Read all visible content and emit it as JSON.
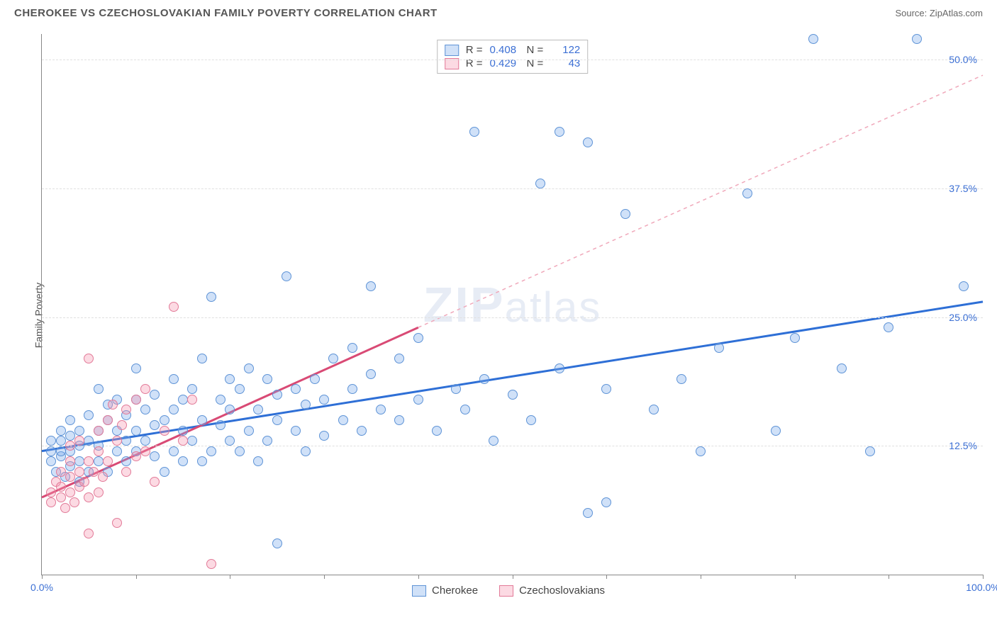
{
  "title": "CHEROKEE VS CZECHOSLOVAKIAN FAMILY POVERTY CORRELATION CHART",
  "source_prefix": "Source: ",
  "source_name": "ZipAtlas.com",
  "watermark_a": "ZIP",
  "watermark_b": "atlas",
  "chart": {
    "type": "scatter",
    "ylabel": "Family Poverty",
    "xlim": [
      0,
      100
    ],
    "ylim": [
      0,
      52.5
    ],
    "yticks": [
      12.5,
      25.0,
      37.5,
      50.0
    ],
    "ytick_labels": [
      "12.5%",
      "25.0%",
      "37.5%",
      "50.0%"
    ],
    "xticks": [
      0,
      10,
      20,
      30,
      40,
      50,
      60,
      70,
      80,
      90,
      100
    ],
    "xtick_labels": {
      "0": "0.0%",
      "100": "100.0%"
    },
    "grid_color": "#e0e0e0",
    "axis_color": "#888888",
    "background_color": "#ffffff",
    "point_radius": 7,
    "point_stroke_width": 1,
    "series": [
      {
        "name": "Cherokee",
        "fill": "rgba(120,170,235,0.35)",
        "stroke": "#5e93d6",
        "R": "0.408",
        "N": "122",
        "trend": {
          "x1": 0,
          "y1": 12.0,
          "x2": 100,
          "y2": 26.5,
          "color": "#2e6fd6",
          "width": 3,
          "dash": ""
        },
        "points": [
          [
            1,
            11
          ],
          [
            1,
            12
          ],
          [
            1,
            13
          ],
          [
            1.5,
            10
          ],
          [
            2,
            11.5
          ],
          [
            2,
            13
          ],
          [
            2,
            14
          ],
          [
            2,
            12
          ],
          [
            2.5,
            9.5
          ],
          [
            3,
            10.5
          ],
          [
            3,
            12
          ],
          [
            3,
            13.5
          ],
          [
            3,
            15
          ],
          [
            4,
            11
          ],
          [
            4,
            12.5
          ],
          [
            4,
            14
          ],
          [
            4,
            9
          ],
          [
            5,
            10
          ],
          [
            5,
            13
          ],
          [
            5,
            15.5
          ],
          [
            6,
            11
          ],
          [
            6,
            12.5
          ],
          [
            6,
            14
          ],
          [
            6,
            18
          ],
          [
            7,
            10
          ],
          [
            7,
            15
          ],
          [
            7,
            16.5
          ],
          [
            8,
            12
          ],
          [
            8,
            14
          ],
          [
            8,
            17
          ],
          [
            9,
            11
          ],
          [
            9,
            13
          ],
          [
            9,
            15.5
          ],
          [
            10,
            12
          ],
          [
            10,
            14
          ],
          [
            10,
            17
          ],
          [
            10,
            20
          ],
          [
            11,
            13
          ],
          [
            11,
            16
          ],
          [
            12,
            11.5
          ],
          [
            12,
            14.5
          ],
          [
            12,
            17.5
          ],
          [
            13,
            10
          ],
          [
            13,
            15
          ],
          [
            14,
            12
          ],
          [
            14,
            16
          ],
          [
            14,
            19
          ],
          [
            15,
            11
          ],
          [
            15,
            14
          ],
          [
            15,
            17
          ],
          [
            16,
            13
          ],
          [
            16,
            18
          ],
          [
            17,
            11
          ],
          [
            17,
            15
          ],
          [
            17,
            21
          ],
          [
            18,
            27
          ],
          [
            18,
            12
          ],
          [
            19,
            14.5
          ],
          [
            19,
            17
          ],
          [
            20,
            13
          ],
          [
            20,
            16
          ],
          [
            20,
            19
          ],
          [
            21,
            12
          ],
          [
            21,
            18
          ],
          [
            22,
            14
          ],
          [
            22,
            20
          ],
          [
            23,
            11
          ],
          [
            23,
            16
          ],
          [
            24,
            13
          ],
          [
            24,
            19
          ],
          [
            25,
            15
          ],
          [
            25,
            17.5
          ],
          [
            25,
            3
          ],
          [
            26,
            29
          ],
          [
            27,
            14
          ],
          [
            27,
            18
          ],
          [
            28,
            12
          ],
          [
            28,
            16.5
          ],
          [
            29,
            19
          ],
          [
            30,
            13.5
          ],
          [
            30,
            17
          ],
          [
            31,
            21
          ],
          [
            32,
            15
          ],
          [
            33,
            18
          ],
          [
            33,
            22
          ],
          [
            34,
            14
          ],
          [
            35,
            19.5
          ],
          [
            35,
            28
          ],
          [
            36,
            16
          ],
          [
            38,
            15
          ],
          [
            38,
            21
          ],
          [
            40,
            17
          ],
          [
            40,
            23
          ],
          [
            42,
            14
          ],
          [
            44,
            18
          ],
          [
            45,
            16
          ],
          [
            46,
            43
          ],
          [
            47,
            19
          ],
          [
            48,
            13
          ],
          [
            50,
            17.5
          ],
          [
            52,
            15
          ],
          [
            53,
            38
          ],
          [
            55,
            20
          ],
          [
            55,
            43
          ],
          [
            58,
            42
          ],
          [
            58,
            6
          ],
          [
            60,
            18
          ],
          [
            60,
            7
          ],
          [
            62,
            35
          ],
          [
            65,
            16
          ],
          [
            68,
            19
          ],
          [
            70,
            12
          ],
          [
            72,
            22
          ],
          [
            75,
            37
          ],
          [
            78,
            14
          ],
          [
            80,
            23
          ],
          [
            82,
            52
          ],
          [
            85,
            20
          ],
          [
            88,
            12
          ],
          [
            90,
            24
          ],
          [
            93,
            52
          ],
          [
            98,
            28
          ]
        ]
      },
      {
        "name": "Czechoslovakians",
        "fill": "rgba(245,150,175,0.35)",
        "stroke": "#e27a98",
        "R": "0.429",
        "N": "43",
        "trend": {
          "x1": 0,
          "y1": 7.5,
          "x2": 40,
          "y2": 24.0,
          "color": "#d94a75",
          "width": 3,
          "dash": ""
        },
        "trend_ext": {
          "x1": 40,
          "y1": 24.0,
          "x2": 100,
          "y2": 48.5,
          "color": "#f0a8ba",
          "width": 1.5,
          "dash": "5,5"
        },
        "points": [
          [
            1,
            7
          ],
          [
            1,
            8
          ],
          [
            1.5,
            9
          ],
          [
            2,
            7.5
          ],
          [
            2,
            8.5
          ],
          [
            2,
            10
          ],
          [
            2.5,
            6.5
          ],
          [
            3,
            8
          ],
          [
            3,
            9.5
          ],
          [
            3,
            11
          ],
          [
            3,
            12.5
          ],
          [
            3.5,
            7
          ],
          [
            4,
            8.5
          ],
          [
            4,
            10
          ],
          [
            4,
            13
          ],
          [
            4.5,
            9
          ],
          [
            5,
            7.5
          ],
          [
            5,
            11
          ],
          [
            5,
            21
          ],
          [
            5,
            4
          ],
          [
            5.5,
            10
          ],
          [
            6,
            8
          ],
          [
            6,
            12
          ],
          [
            6,
            14
          ],
          [
            6.5,
            9.5
          ],
          [
            7,
            11
          ],
          [
            7,
            15
          ],
          [
            7.5,
            16.5
          ],
          [
            8,
            13
          ],
          [
            8,
            5
          ],
          [
            8.5,
            14.5
          ],
          [
            9,
            10
          ],
          [
            9,
            16
          ],
          [
            10,
            11.5
          ],
          [
            10,
            17
          ],
          [
            11,
            12
          ],
          [
            11,
            18
          ],
          [
            12,
            9
          ],
          [
            13,
            14
          ],
          [
            14,
            26
          ],
          [
            15,
            13
          ],
          [
            16,
            17
          ],
          [
            18,
            1
          ]
        ]
      }
    ],
    "legend_top": {
      "border_color": "#bbbbbb",
      "rows": [
        {
          "swatch_fill": "rgba(120,170,235,0.35)",
          "swatch_stroke": "#5e93d6",
          "r_label": "R =",
          "r_val": "0.408",
          "n_label": "N =",
          "n_val": "122"
        },
        {
          "swatch_fill": "rgba(245,150,175,0.35)",
          "swatch_stroke": "#e27a98",
          "r_label": "R =",
          "r_val": "0.429",
          "n_label": "N =",
          "n_val": "43"
        }
      ]
    },
    "legend_bottom": [
      {
        "swatch_fill": "rgba(120,170,235,0.35)",
        "swatch_stroke": "#5e93d6",
        "label": "Cherokee"
      },
      {
        "swatch_fill": "rgba(245,150,175,0.35)",
        "swatch_stroke": "#e27a98",
        "label": "Czechoslovakians"
      }
    ]
  }
}
